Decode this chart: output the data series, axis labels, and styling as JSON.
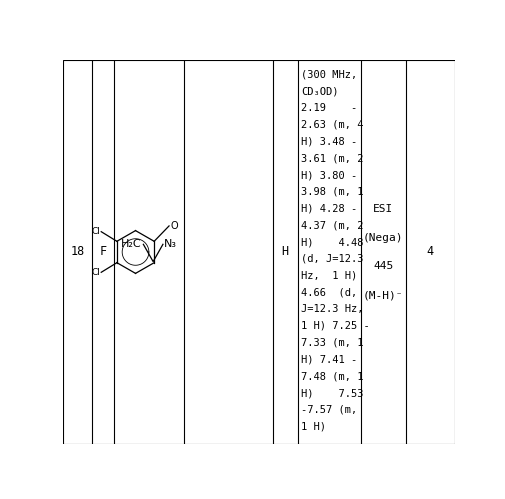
{
  "fig_width": 5.05,
  "fig_height": 4.99,
  "dpi": 100,
  "background_color": "#ffffff",
  "border_color": "#000000",
  "text_color": "#000000",
  "col_boundaries": [
    0.0,
    0.075,
    0.13,
    0.31,
    0.535,
    0.6,
    0.76,
    0.875,
    1.0
  ],
  "col1_text": "18",
  "col2_text": "F",
  "col5_text": "H",
  "col6_lines": [
    "(300 MHz,",
    "CD₃OD)",
    "2.19    -",
    "2.63 (m, 4",
    "H) 3.48 -",
    "3.61 (m, 2",
    "H) 3.80 -",
    "3.98 (m, 1",
    "H) 4.28 -",
    "4.37 (m, 2",
    "H)    4.48",
    "(d, J=12.3",
    "Hz,  1 H)",
    "4.66  (d,",
    "J=12.3 Hz,",
    "1 H) 7.25 -",
    "7.33 (m, 1",
    "H) 7.41 -",
    "7.48 (m, 1",
    "H)    7.53",
    "-7.57 (m,",
    "1 H)"
  ],
  "col7_lines": [
    "ESI",
    "(Nega)",
    "445",
    "(M-H)⁻"
  ],
  "col8_text": "4",
  "font_size_main": 8.5,
  "font_size_nmr": 7.5,
  "font_family": "monospace"
}
